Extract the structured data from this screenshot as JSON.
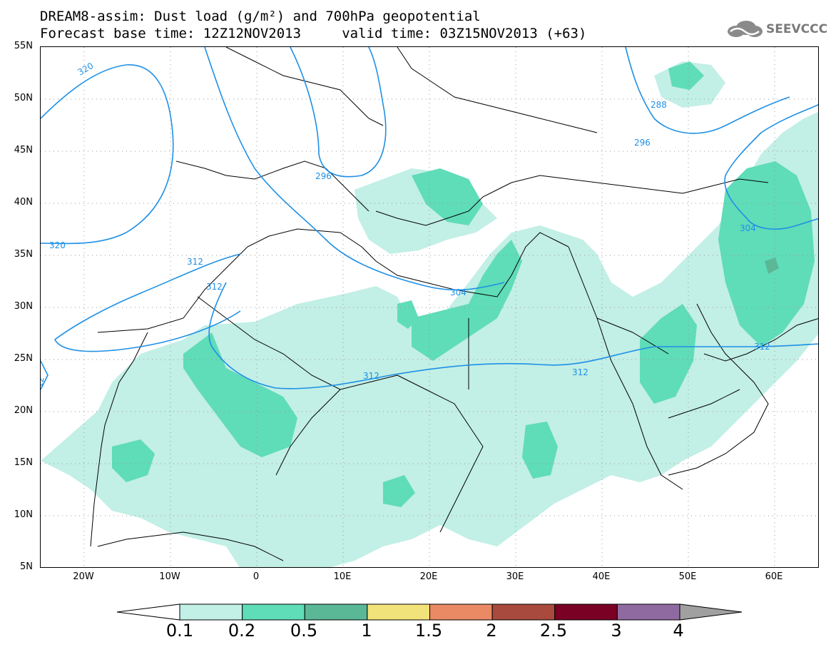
{
  "title": {
    "line1": "DREAM8-assim: Dust load (g/m²) and 700hPa geopotential",
    "line2": "Forecast base time: 12Z12NOV2013     valid time: 03Z15NOV2013 (+63)"
  },
  "logo": {
    "text": "SEEVCCC",
    "icon": "cloud-logo-icon"
  },
  "axes": {
    "lat_labels": [
      "55N",
      "50N",
      "45N",
      "40N",
      "35N",
      "30N",
      "25N",
      "20N",
      "15N",
      "10N",
      "5N"
    ],
    "lon_labels": [
      "20W",
      "10W",
      "0",
      "10E",
      "20E",
      "30E",
      "40E",
      "50E",
      "60E"
    ]
  },
  "contour_labels": [
    "320",
    "296",
    "288",
    "296",
    "320",
    "312",
    "312",
    "304",
    "304",
    "312",
    "312",
    "312",
    "12"
  ],
  "colorbar": {
    "labels": [
      "0.1",
      "0.2",
      "0.5",
      "1",
      "1.5",
      "2",
      "2.5",
      "3",
      "4"
    ],
    "colors": [
      "#c2efe6",
      "#5fdcb8",
      "#5ab896",
      "#f2e27a",
      "#e98a65",
      "#a84a3e",
      "#7a0024",
      "#8f6aa0"
    ],
    "under_color": "#ffffff",
    "over_color": "#a0a0a0"
  },
  "colors": {
    "dust_light": "#c2efe6",
    "dust_mid": "#5fdcb8",
    "dust_dark": "#5ab896",
    "contour": "#1e90e6",
    "coast": "#000000"
  }
}
